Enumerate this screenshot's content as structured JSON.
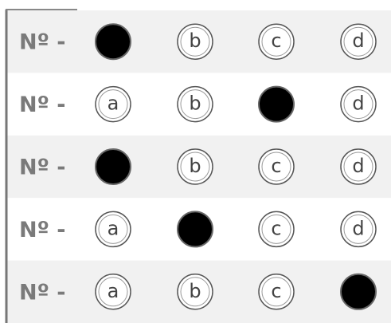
{
  "sheet": {
    "rows": [
      {
        "label": "Nº -",
        "options": [
          null,
          "b",
          "c",
          "d"
        ]
      },
      {
        "label": "Nº -",
        "options": [
          "a",
          "b",
          null,
          "d"
        ]
      },
      {
        "label": "Nº -",
        "options": [
          null,
          "b",
          "c",
          "d"
        ]
      },
      {
        "label": "Nº -",
        "options": [
          "a",
          null,
          "c",
          "d"
        ]
      },
      {
        "label": "Nº -",
        "options": [
          "a",
          "b",
          "c",
          null
        ]
      }
    ]
  }
}
